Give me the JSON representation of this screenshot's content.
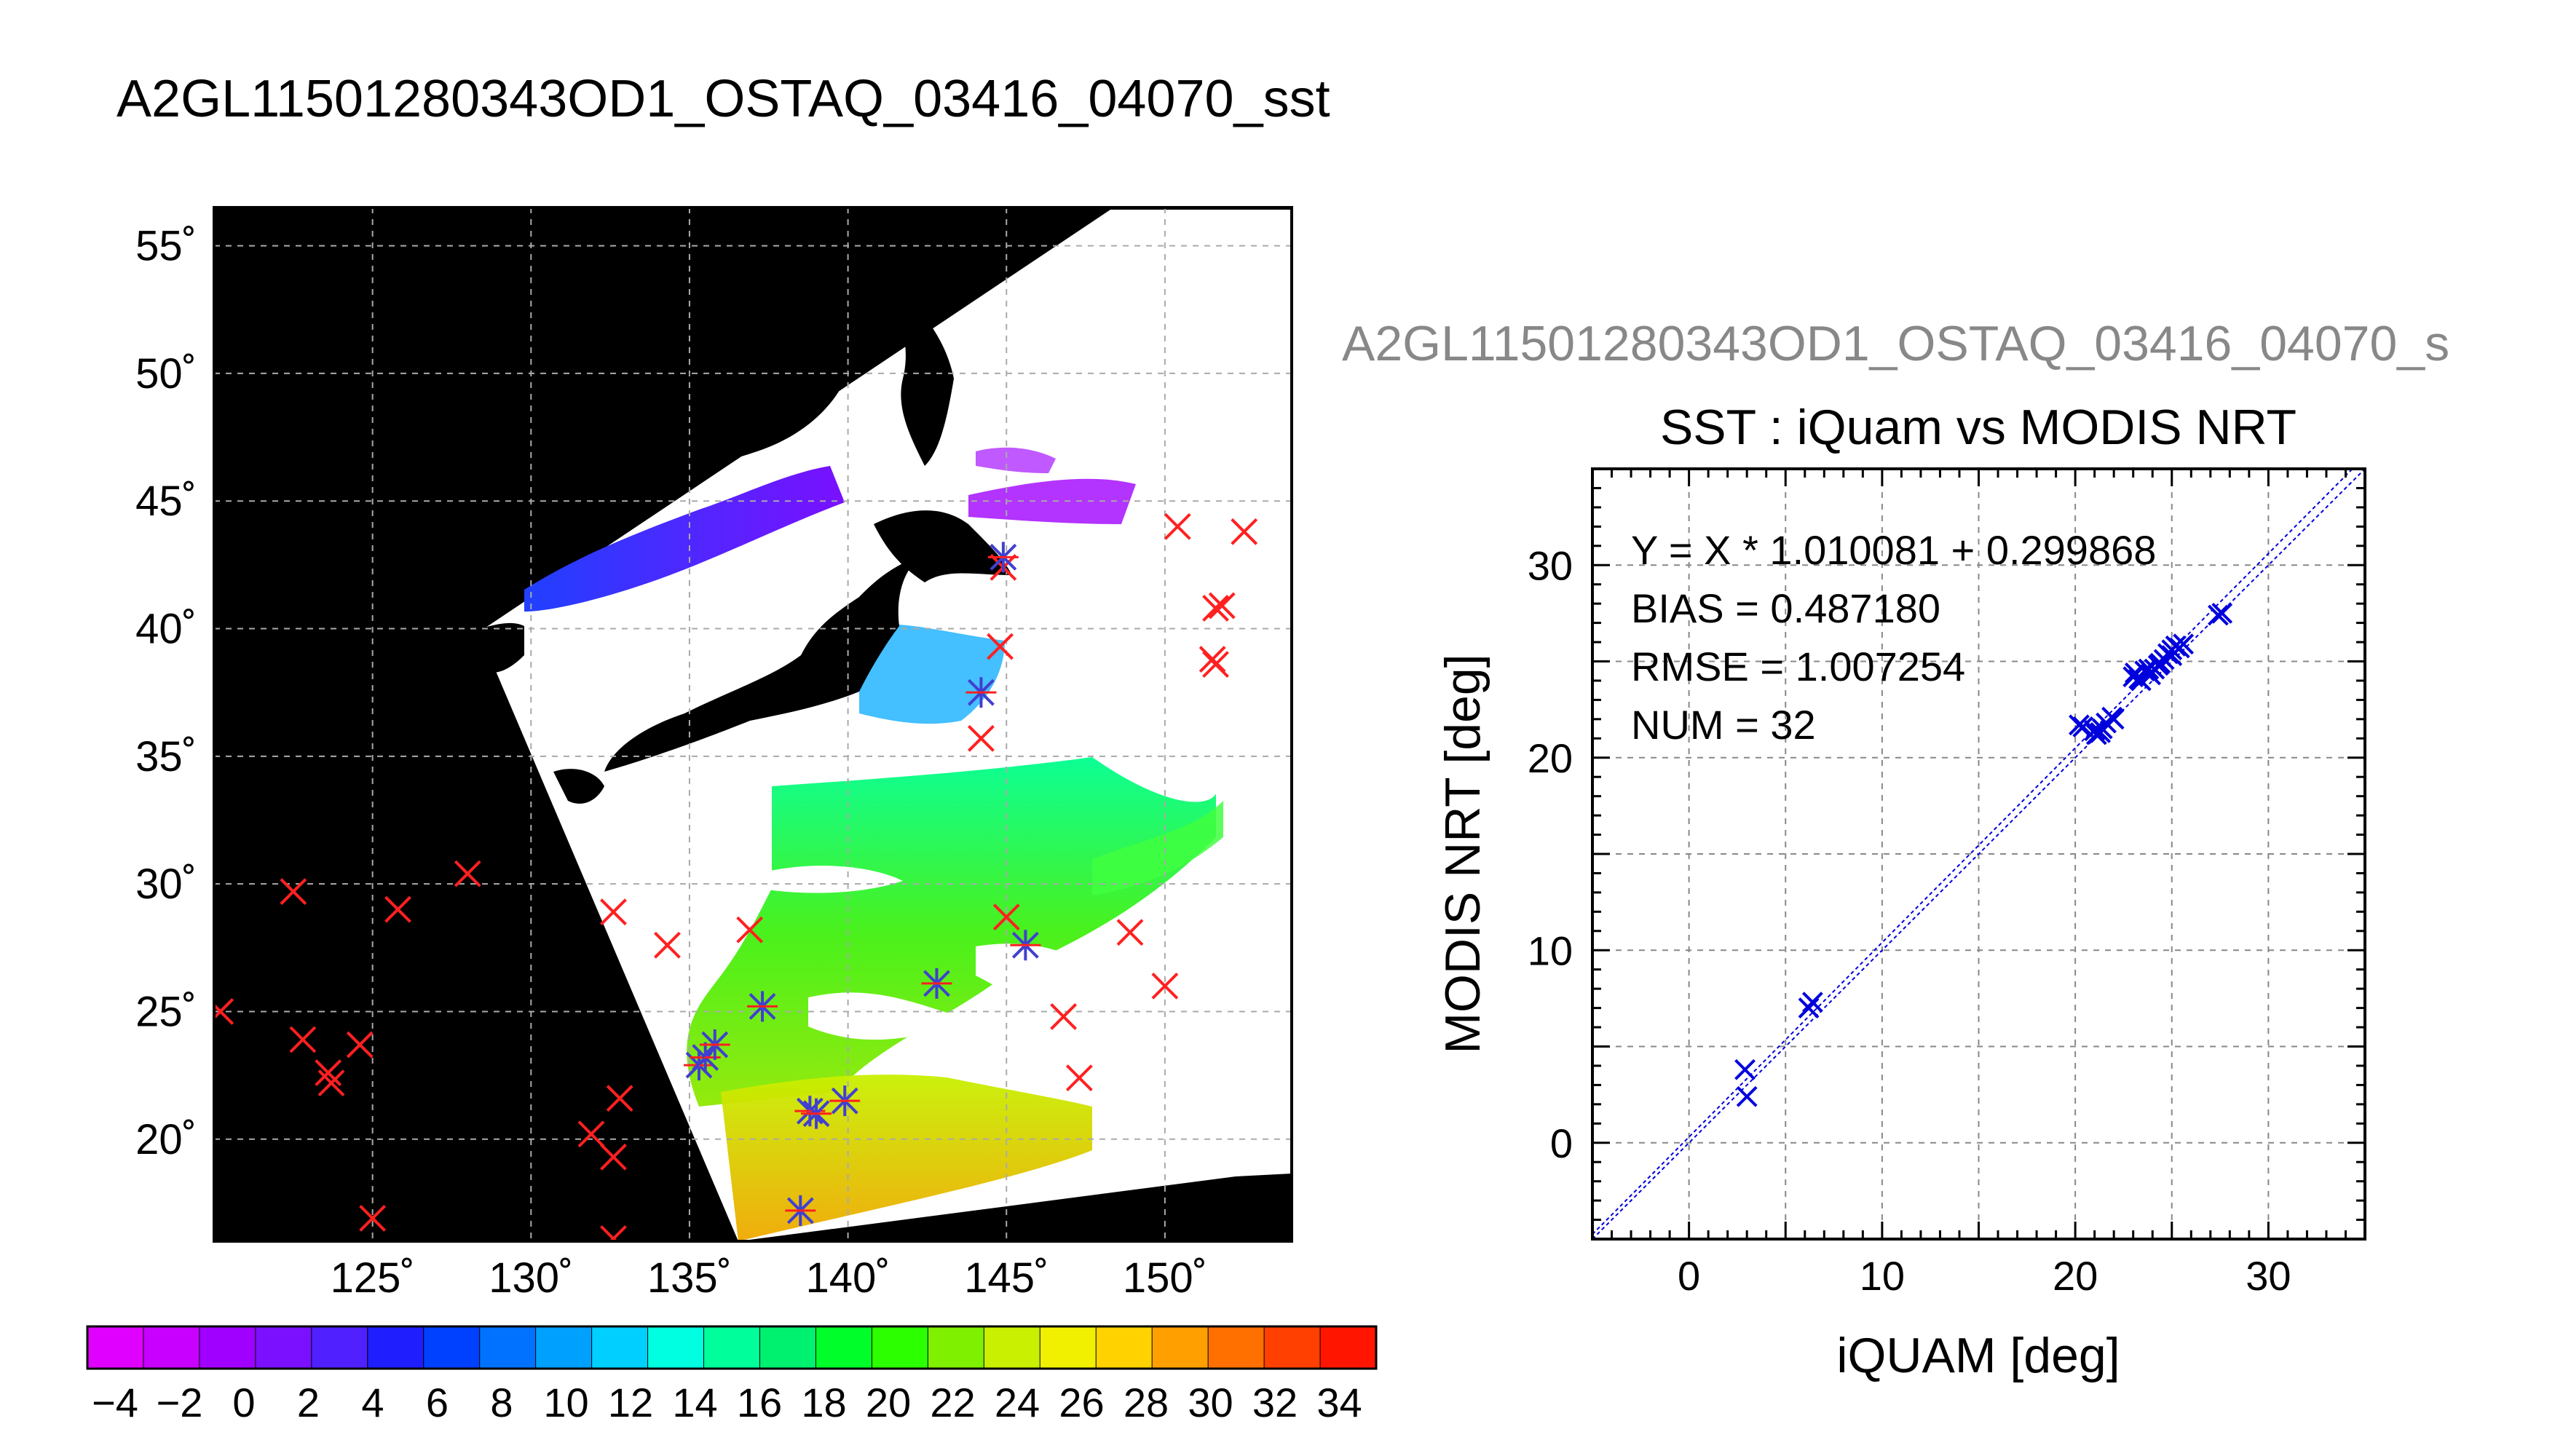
{
  "main_title": "A2GL11501280343OD1_OSTAQ_03416_04070_sst",
  "scatter_title_prefix": "A2GL11501280343OD1_OSTAQ_03416_04070_s",
  "map": {
    "lat_ticks": [
      {
        "v": 55,
        "label": "55˚"
      },
      {
        "v": 50,
        "label": "50˚"
      },
      {
        "v": 45,
        "label": "45˚"
      },
      {
        "v": 40,
        "label": "40˚"
      },
      {
        "v": 35,
        "label": "35˚"
      },
      {
        "v": 30,
        "label": "30˚"
      },
      {
        "v": 25,
        "label": "25˚"
      },
      {
        "v": 20,
        "label": "20˚"
      }
    ],
    "lon_ticks": [
      {
        "v": 125,
        "label": "125˚"
      },
      {
        "v": 130,
        "label": "130˚"
      },
      {
        "v": 135,
        "label": "135˚"
      },
      {
        "v": 140,
        "label": "140˚"
      },
      {
        "v": 145,
        "label": "145˚"
      },
      {
        "v": 150,
        "label": "150˚"
      }
    ],
    "lon_range": [
      120,
      154
    ],
    "lat_range": [
      16,
      56.5
    ],
    "grid": true,
    "colors": {
      "background": "#000000",
      "cloud": "#ffffff",
      "land": "#000000",
      "grid": "#aaaaaa",
      "insitu_marker": "#ff2020",
      "match_marker": "#4040d0"
    },
    "insitu_points": [
      [
        120.2,
        25.0
      ],
      [
        122.5,
        29.7
      ],
      [
        125.8,
        29.0
      ],
      [
        128.0,
        30.4
      ],
      [
        122.8,
        23.9
      ],
      [
        124.6,
        23.7
      ],
      [
        123.6,
        22.6
      ],
      [
        123.7,
        22.2
      ],
      [
        125.0,
        16.9
      ],
      [
        131.9,
        20.2
      ],
      [
        132.6,
        19.3
      ],
      [
        132.8,
        21.6
      ],
      [
        132.6,
        16.1
      ],
      [
        132.6,
        28.9
      ],
      [
        134.3,
        27.6
      ],
      [
        136.9,
        28.2
      ],
      [
        144.9,
        42.4
      ],
      [
        144.8,
        39.3
      ],
      [
        144.2,
        35.7
      ],
      [
        145.0,
        28.7
      ],
      [
        146.8,
        24.8
      ],
      [
        147.3,
        22.4
      ],
      [
        148.9,
        28.1
      ],
      [
        150.0,
        26.0
      ],
      [
        150.4,
        44.0
      ],
      [
        152.5,
        43.8
      ],
      [
        151.6,
        40.8
      ],
      [
        151.8,
        40.9
      ],
      [
        151.5,
        38.8
      ],
      [
        151.6,
        38.6
      ]
    ],
    "matched_points": [
      [
        144.2,
        37.5
      ],
      [
        144.9,
        42.8
      ],
      [
        135.3,
        22.9
      ],
      [
        135.5,
        23.2
      ],
      [
        135.8,
        23.7
      ],
      [
        137.3,
        25.2
      ],
      [
        138.8,
        21.1
      ],
      [
        139.0,
        21.0
      ],
      [
        139.9,
        21.5
      ],
      [
        138.5,
        17.2
      ],
      [
        142.8,
        26.1
      ],
      [
        145.6,
        27.6
      ]
    ]
  },
  "colorbar": {
    "ticks": [
      "−4",
      "−2",
      "0",
      "2",
      "4",
      "6",
      "8",
      "10",
      "12",
      "14",
      "16",
      "18",
      "20",
      "22",
      "24",
      "26",
      "28",
      "30",
      "32",
      "34"
    ],
    "colors": [
      "#e000ff",
      "#c800ff",
      "#a000ff",
      "#7a10ff",
      "#5020ff",
      "#1e1eff",
      "#0040ff",
      "#0072ff",
      "#00a0ff",
      "#00cfff",
      "#00ffe0",
      "#00ff9a",
      "#00f070",
      "#00ff2a",
      "#2cff00",
      "#7ef000",
      "#c8f000",
      "#f0f000",
      "#ffd200",
      "#ffa000",
      "#ff7000",
      "#ff4000",
      "#ff1500"
    ]
  },
  "chart_data": {
    "type": "scatter",
    "title": "SST : iQuam vs MODIS NRT",
    "xlabel": "iQUAM [deg]",
    "ylabel": "MODIS NRT [deg]",
    "xlim": [
      -5,
      35
    ],
    "ylim": [
      -5,
      35
    ],
    "xticks": [
      0,
      10,
      20,
      30
    ],
    "yticks": [
      0,
      10,
      20,
      30
    ],
    "grid": true,
    "annotations": [
      "Y = X * 1.010081 + 0.299868",
      "BIAS = 0.487180",
      "RMSE = 1.007254",
      "NUM = 32"
    ],
    "fit": {
      "slope": 1.010081,
      "intercept": 0.299868
    },
    "marker_color": "#0000dd",
    "points": [
      [
        2.9,
        3.8
      ],
      [
        3.0,
        2.4
      ],
      [
        6.2,
        7.0
      ],
      [
        6.4,
        7.3
      ],
      [
        20.2,
        21.7
      ],
      [
        20.4,
        21.6
      ],
      [
        21.0,
        21.4
      ],
      [
        21.3,
        21.3
      ],
      [
        21.4,
        21.5
      ],
      [
        21.6,
        21.8
      ],
      [
        21.9,
        22.1
      ],
      [
        22.0,
        22.0
      ],
      [
        23.0,
        24.2
      ],
      [
        23.1,
        24.4
      ],
      [
        23.4,
        24.0
      ],
      [
        23.6,
        24.5
      ],
      [
        23.8,
        24.6
      ],
      [
        23.9,
        24.3
      ],
      [
        24.1,
        24.6
      ],
      [
        24.3,
        24.8
      ],
      [
        24.6,
        25.1
      ],
      [
        24.8,
        25.4
      ],
      [
        25.0,
        25.6
      ],
      [
        25.2,
        25.8
      ],
      [
        25.4,
        25.7
      ],
      [
        25.6,
        25.9
      ],
      [
        25.0,
        25.3
      ],
      [
        24.4,
        24.9
      ],
      [
        23.3,
        24.1
      ],
      [
        21.1,
        21.2
      ],
      [
        27.4,
        27.4
      ],
      [
        27.6,
        27.5
      ]
    ]
  }
}
